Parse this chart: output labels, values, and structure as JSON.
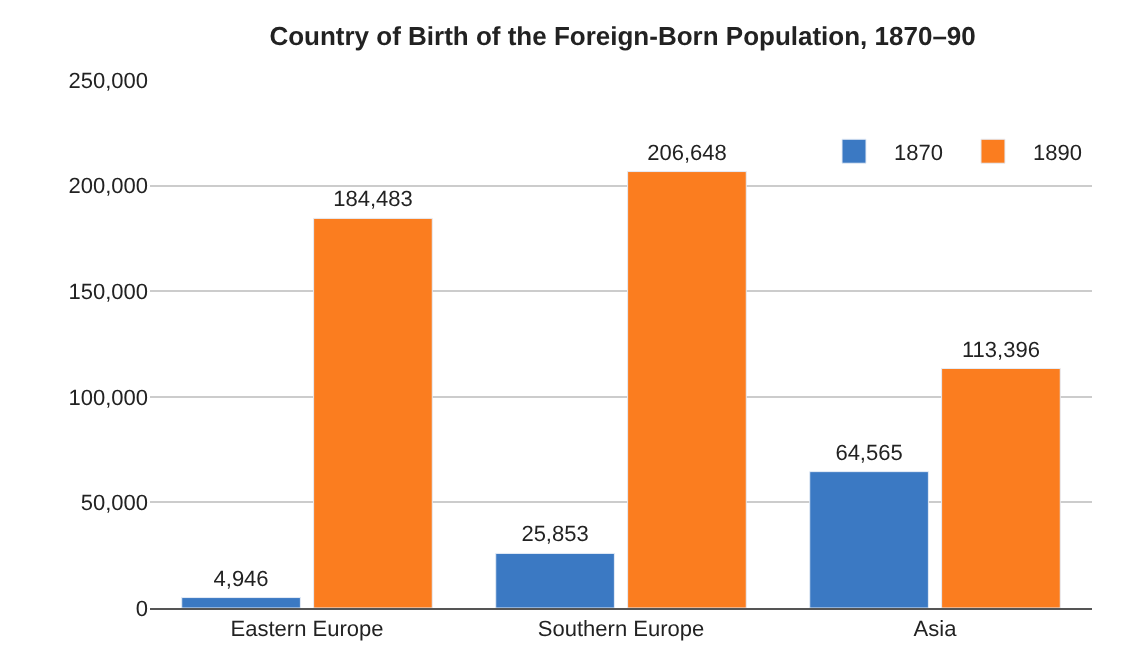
{
  "chart_data": {
    "type": "bar",
    "title": "Country of Birth of the Foreign-Born Population, 1870–90",
    "categories": [
      "Eastern Europe",
      "Southern Europe",
      "Asia"
    ],
    "series": [
      {
        "name": "1870",
        "color": "#3b79c3",
        "values": [
          4946,
          25853,
          64565
        ],
        "value_labels": [
          "4,946",
          "25,853",
          "64,565"
        ]
      },
      {
        "name": "1890",
        "color": "#fb7d1f",
        "values": [
          184483,
          206648,
          113396
        ],
        "value_labels": [
          "184,483",
          "206,648",
          "113,396"
        ]
      }
    ],
    "ylim": [
      0,
      250000
    ],
    "yticks": [
      {
        "value": 0,
        "label": "0"
      },
      {
        "value": 50000,
        "label": "50,000"
      },
      {
        "value": 100000,
        "label": "100,000"
      },
      {
        "value": 150000,
        "label": "150,000"
      },
      {
        "value": 200000,
        "label": "200,000"
      },
      {
        "value": 250000,
        "label": "250,000"
      }
    ],
    "grid": "y",
    "legend": "top right"
  }
}
